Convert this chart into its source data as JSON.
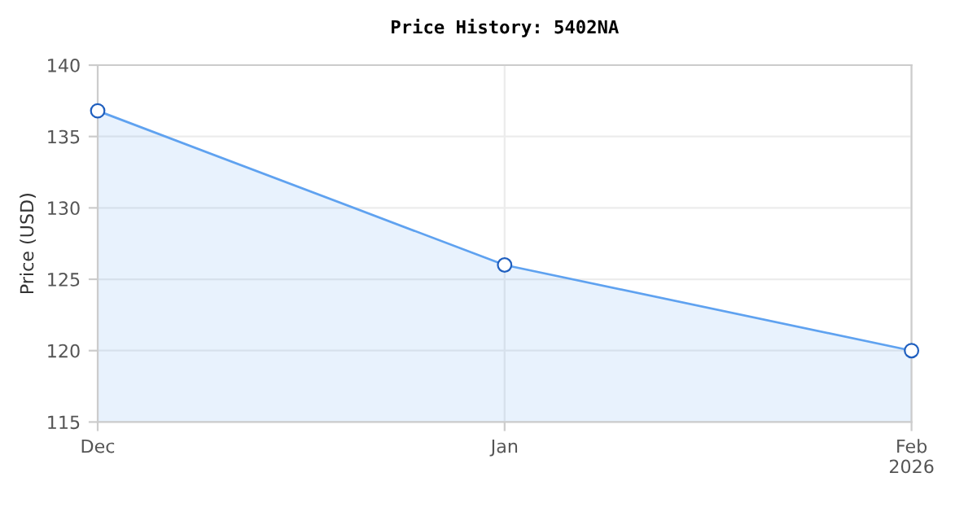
{
  "chart_data": {
    "type": "area",
    "title": "Price History: 5402NA",
    "ylabel": "Price (USD)",
    "x": [
      "2025-12-01",
      "2026-01-01",
      "2026-02-01"
    ],
    "series": [
      {
        "color": "#5fa2f0",
        "values": [
          136.8,
          126,
          120
        ]
      }
    ],
    "xlim": [
      "2025-12-01",
      "2026-02-01"
    ],
    "xticks": [
      {
        "value": "2025-12-01",
        "label": "Dec"
      },
      {
        "value": "2026-01-01",
        "label": "Jan"
      },
      {
        "value": "2026-02-01",
        "label": "Feb\n2026"
      }
    ],
    "ylim": [
      115,
      140
    ],
    "yticks": [
      115,
      120,
      125,
      130,
      135,
      140
    ],
    "grid": true,
    "marker": "circle",
    "line_style": "solid"
  }
}
